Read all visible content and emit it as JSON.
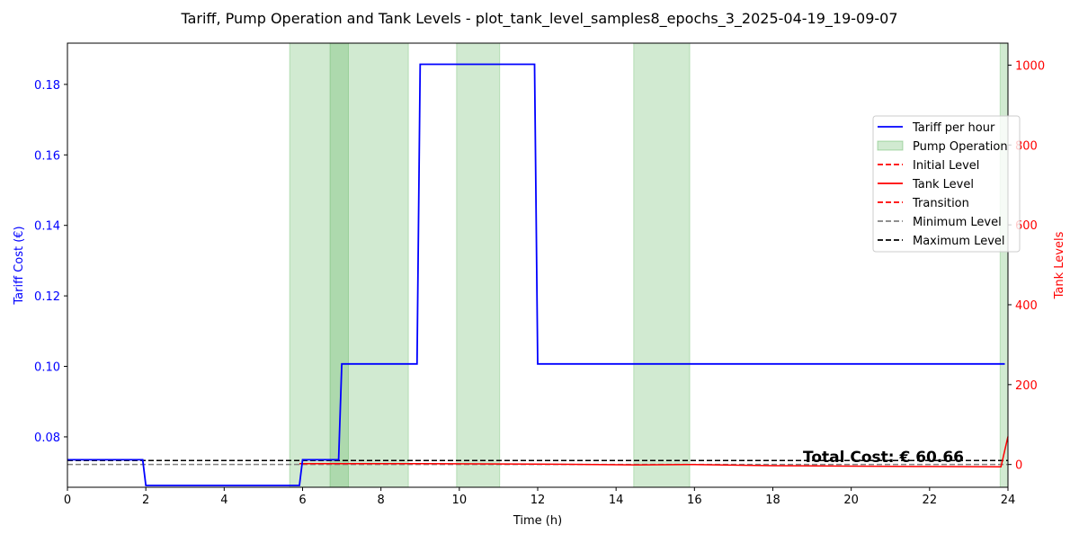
{
  "chart_data": {
    "type": "line",
    "title": "Tariff, Pump Operation and Tank Levels - plot_tank_level_samples8_epochs_3_2025-04-19_19-09-07",
    "xlabel": "Time (h)",
    "ylabel_left": "Tariff Cost (€)",
    "ylabel_right": "Tank Levels",
    "xlim": [
      0,
      24
    ],
    "ylim_left": [
      0.0657,
      0.1917
    ],
    "ylim_right": [
      -57,
      1055
    ],
    "x_ticks": [
      "0",
      "2",
      "4",
      "6",
      "8",
      "10",
      "12",
      "14",
      "16",
      "18",
      "20",
      "22",
      "24"
    ],
    "y_left_ticks": [
      "0.08",
      "0.10",
      "0.12",
      "0.14",
      "0.16",
      "0.18"
    ],
    "y_right_ticks": [
      "0",
      "200",
      "400",
      "600",
      "800",
      "1000"
    ],
    "legend_position": "right",
    "annotation": "Total Cost: € 60.66",
    "colors": {
      "tariff": "#0000ff",
      "pump": "#2ca02c",
      "tank": "#ff0000",
      "minimum": "#808080",
      "maximum": "#000000",
      "left_axis_text": "#0000ff",
      "right_axis_text": "#ff0000"
    },
    "legend": [
      {
        "label": "Tariff per hour",
        "style": "line",
        "color": "#0000ff"
      },
      {
        "label": "Pump Operation",
        "style": "patch",
        "color": "#2ca02c"
      },
      {
        "label": "Initial Level",
        "style": "dashed",
        "color": "#ff0000"
      },
      {
        "label": "Tank Level",
        "style": "line",
        "color": "#ff0000"
      },
      {
        "label": "Transition",
        "style": "dashed",
        "color": "#ff0000"
      },
      {
        "label": "Minimum Level",
        "style": "dashed",
        "color": "#808080"
      },
      {
        "label": "Maximum Level",
        "style": "dashed",
        "color": "#000000"
      }
    ],
    "pump_operation": [
      [
        5.67,
        7.17
      ],
      [
        6.7,
        8.7
      ],
      [
        9.93,
        11.03
      ],
      [
        14.45,
        15.88
      ],
      [
        23.8,
        24
      ]
    ],
    "tariff_series": {
      "name": "Tariff per hour",
      "x": [
        0,
        1.92,
        2.0,
        5.92,
        6.0,
        6.92,
        7.0,
        8.92,
        9.0,
        11.92,
        12.0,
        23.92
      ],
      "y": [
        0.0735,
        0.0735,
        0.0662,
        0.0662,
        0.0735,
        0.0735,
        0.1007,
        0.1007,
        0.1857,
        0.1857,
        0.1007,
        0.1007
      ]
    },
    "tank_series": {
      "name": "Tank Level",
      "x": [
        5.92,
        9,
        12,
        14.5,
        16,
        18,
        20,
        22,
        23.82,
        24
      ],
      "y": [
        2,
        2,
        1,
        -1,
        0,
        -3,
        -4,
        -5,
        -6,
        70
      ]
    },
    "minimum_level": 0,
    "maximum_level": 10
  }
}
